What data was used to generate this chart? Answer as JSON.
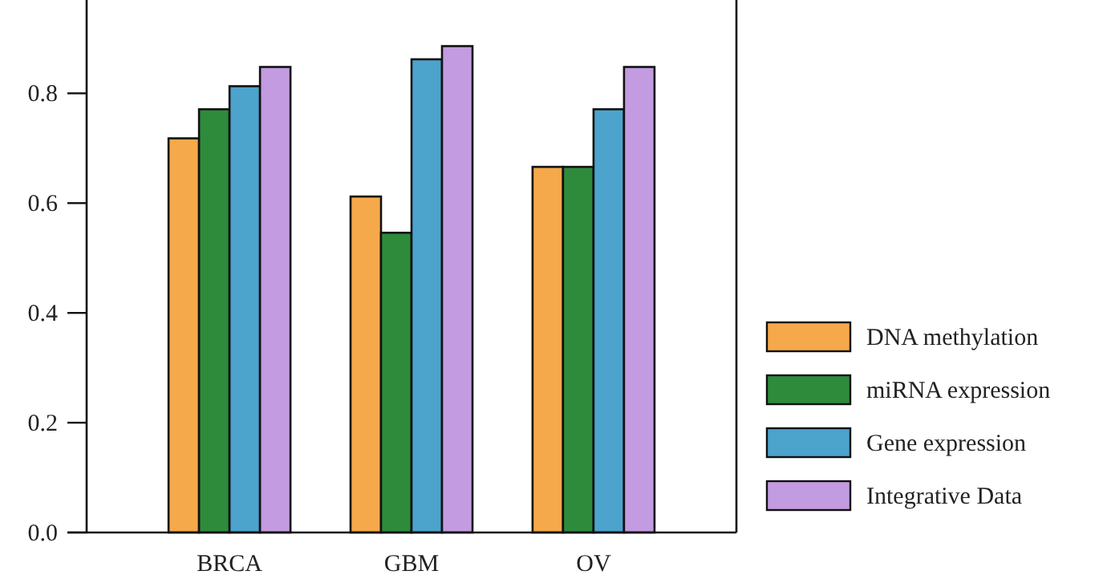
{
  "chart_data": {
    "type": "bar",
    "categories": [
      "BRCA",
      "GBM",
      "OV"
    ],
    "series": [
      {
        "name": "DNA methylation",
        "color": "#f5a94a",
        "values": [
          0.718,
          0.612,
          0.666
        ]
      },
      {
        "name": "miRNA expression",
        "color": "#2e8b3c",
        "values": [
          0.771,
          0.546,
          0.666
        ]
      },
      {
        "name": "Gene expression",
        "color": "#4ca3cc",
        "values": [
          0.813,
          0.862,
          0.771
        ]
      },
      {
        "name": "Integrative Data",
        "color": "#c39be0",
        "values": [
          0.848,
          0.886,
          0.848
        ]
      }
    ],
    "ylim": [
      0,
      0.97
    ],
    "yticks": [
      {
        "value": 0,
        "label": "0.0"
      },
      {
        "value": 0.2,
        "label": "0.2"
      },
      {
        "value": 0.4,
        "label": "0.4"
      },
      {
        "value": 0.6,
        "label": "0.6"
      },
      {
        "value": 0.8,
        "label": "0.8"
      }
    ],
    "grid": false,
    "legend": "right"
  }
}
